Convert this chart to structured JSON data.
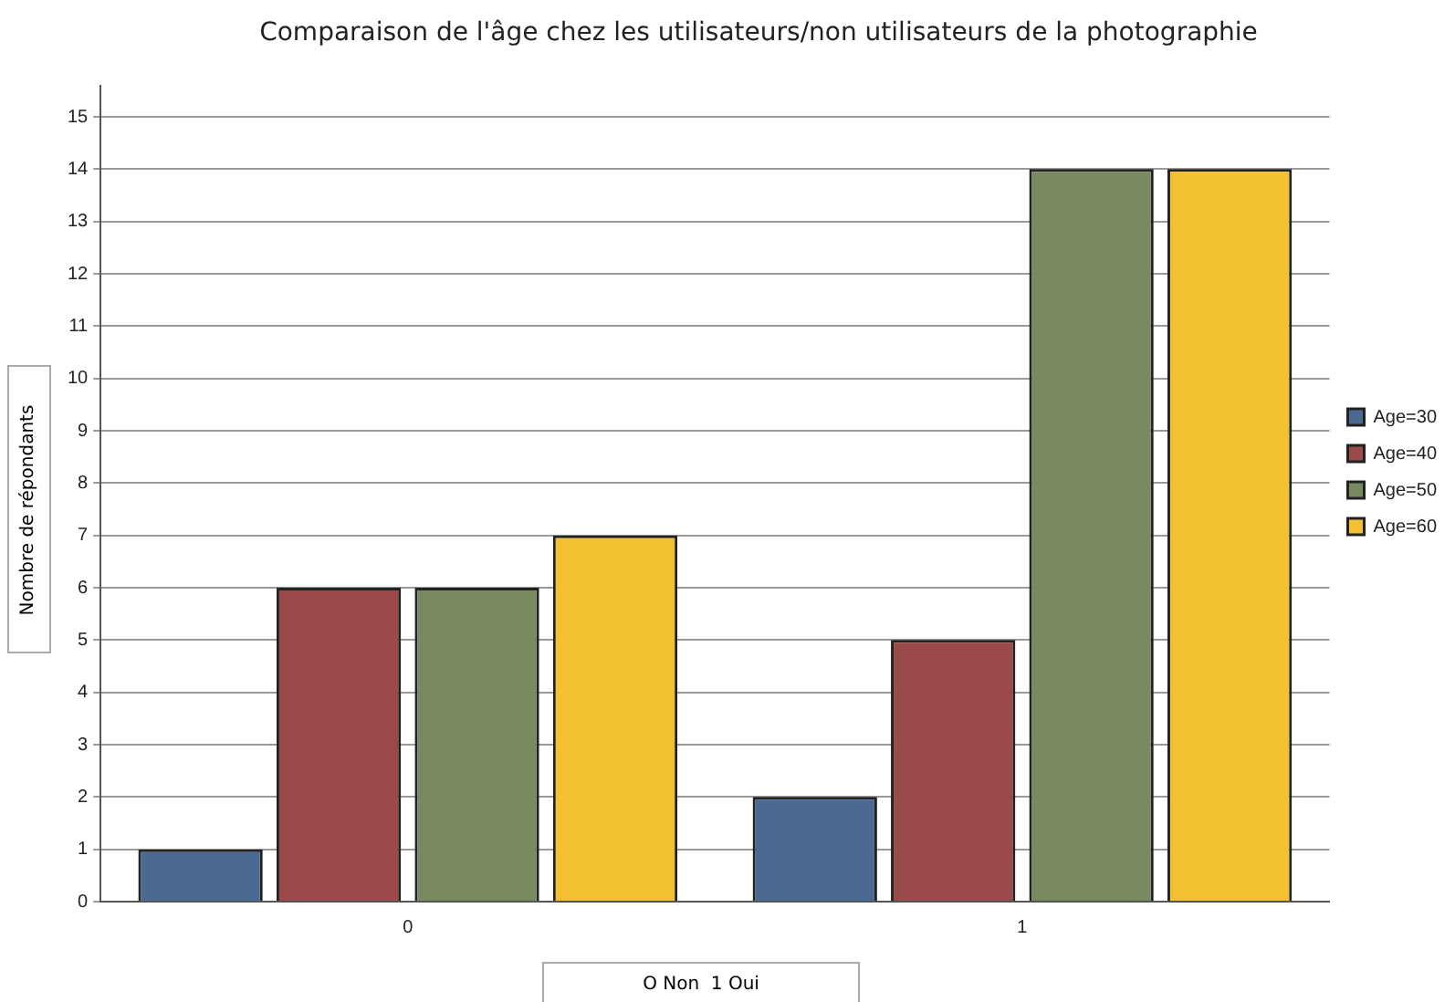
{
  "chart_data": {
    "type": "bar",
    "title": "Comparaison de l'âge chez les utilisateurs/non utilisateurs de la photographie",
    "xlabel": "O Non  1 Oui",
    "ylabel": "Nombre de répondants",
    "categories": [
      "0",
      "1"
    ],
    "series": [
      {
        "name": "Age=30",
        "color": "#4a6a92",
        "values": [
          1,
          2
        ]
      },
      {
        "name": "Age=40",
        "color": "#9a4a4a",
        "values": [
          6,
          5
        ]
      },
      {
        "name": "Age=50",
        "color": "#7a8a60",
        "values": [
          6,
          14
        ]
      },
      {
        "name": "Age=60",
        "color": "#f2c030",
        "values": [
          7,
          14
        ]
      }
    ],
    "ylim": [
      0,
      15.6
    ],
    "yticks": [
      0,
      1,
      2,
      3,
      4,
      5,
      6,
      7,
      8,
      9,
      10,
      11,
      12,
      13,
      14,
      15
    ],
    "grid": "y",
    "legend": "right"
  }
}
